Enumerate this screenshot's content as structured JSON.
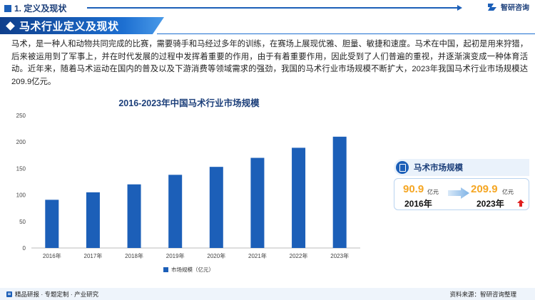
{
  "header": {
    "section_label": "1. 定义及现状",
    "logo_text": "智研咨询"
  },
  "banner": {
    "title": "马术行业定义及现状"
  },
  "paragraph": "马术，是一种人和动物共同完成的比赛，需要骑手和马经过多年的训练，在赛场上展现优雅、胆量、敏捷和速度。马术在中国，起初是用来狩猎，后来被运用到了军事上，并在时代发展的过程中发挥着重要的作用，由于有着重要作用，因此受到了人们普遍的重视，并逐渐演变成一种体育活动。近年来，随着马术运动在国内的普及以及下游消费等领域需求的强劲，我国的马术行业市场规模不断扩大，2023年我国马术行业市场规模达209.9亿元。",
  "chart_data": {
    "type": "bar",
    "title": "2016-2023年中国马术行业市场规模",
    "categories": [
      "2016年",
      "2017年",
      "2018年",
      "2019年",
      "2020年",
      "2021年",
      "2022年",
      "2023年"
    ],
    "series": [
      {
        "name": "市场规模（亿元）",
        "values": [
          90.9,
          105,
          120,
          138,
          153,
          170,
          189,
          209.9
        ]
      }
    ],
    "ylim": [
      0,
      250
    ],
    "yticks": [
      0,
      50,
      100,
      150,
      200,
      250
    ],
    "legend": "bottom",
    "grid": false,
    "color": "#1c5fb8"
  },
  "stat_card": {
    "title": "马术市场规模",
    "from_value": "90.9",
    "from_unit": "亿元",
    "from_year": "2016年",
    "to_value": "209.9",
    "to_unit": "亿元",
    "to_year": "2023年",
    "from_color": "#f5a623",
    "to_color": "#f5a623",
    "arrow_color": "#e02020"
  },
  "footer": {
    "left": "精品研报 · 专题定制 · 产业研究",
    "right": "资料来源：智研咨询整理"
  }
}
